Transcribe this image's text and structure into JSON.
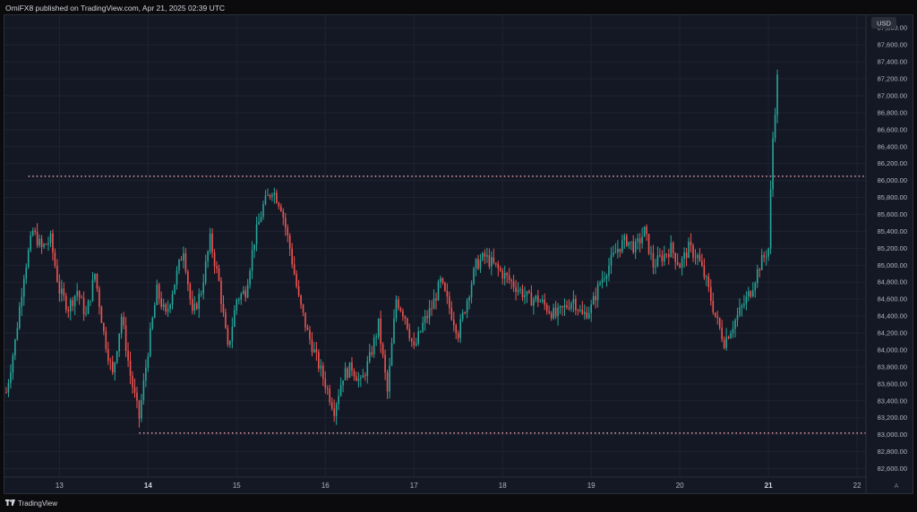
{
  "header": {
    "publisher_line": "OmiFX8 published on TradingView.com, Apr 21, 2025 02:39 UTC"
  },
  "footer": {
    "logo_icon": "tradingview-logo-icon",
    "brand": "TradingView"
  },
  "colors": {
    "up": "#26a69a",
    "down": "#ef5350",
    "level_line": "#f7a8b8",
    "grid": "#1f2331",
    "axis_text": "#b2b5be",
    "background": "#141824"
  },
  "chart_data": {
    "type": "candlestick",
    "currency": "USD",
    "x_tick_labels": [
      "13",
      "14",
      "15",
      "16",
      "17",
      "18",
      "19",
      "20",
      "21",
      "22"
    ],
    "x_tick_day_index": [
      13,
      14,
      15,
      16,
      17,
      18,
      19,
      20,
      21,
      22
    ],
    "y_ticks": [
      82600,
      82800,
      83000,
      83200,
      83400,
      83600,
      83800,
      84000,
      84200,
      84400,
      84600,
      84800,
      85000,
      85200,
      85400,
      85600,
      85800,
      86000,
      86200,
      86400,
      86600,
      86800,
      87000,
      87200,
      87400,
      87600,
      87800
    ],
    "y_tick_labels": [
      "82,600.00",
      "82,800.00",
      "83,000.00",
      "83,200.00",
      "83,400.00",
      "83,600.00",
      "83,800.00",
      "84,000.00",
      "84,200.00",
      "84,400.00",
      "84,600.00",
      "84,800.00",
      "85,000.00",
      "85,200.00",
      "85,400.00",
      "85,600.00",
      "85,800.00",
      "86,000.00",
      "86,200.00",
      "86,400.00",
      "86,600.00",
      "86,800.00",
      "87,000.00",
      "87,200.00",
      "87,400.00",
      "87,600.00",
      "87,800.00"
    ],
    "ylim": [
      82500,
      87950
    ],
    "xlim_day": [
      12.38,
      22.1
    ],
    "resistance_level": 86050,
    "support_level": 83020,
    "grid": true,
    "axis_corner_label": "A",
    "close_path": [
      [
        12.4,
        83500
      ],
      [
        12.5,
        84100
      ],
      [
        12.6,
        84900
      ],
      [
        12.7,
        85400
      ],
      [
        12.8,
        85200
      ],
      [
        12.9,
        85300
      ],
      [
        13.0,
        84700
      ],
      [
        13.1,
        84500
      ],
      [
        13.2,
        84700
      ],
      [
        13.3,
        84400
      ],
      [
        13.4,
        84900
      ],
      [
        13.5,
        84200
      ],
      [
        13.6,
        83700
      ],
      [
        13.7,
        84400
      ],
      [
        13.8,
        83700
      ],
      [
        13.9,
        83200
      ],
      [
        14.0,
        84000
      ],
      [
        14.1,
        84700
      ],
      [
        14.2,
        84400
      ],
      [
        14.3,
        84800
      ],
      [
        14.4,
        85200
      ],
      [
        14.5,
        84400
      ],
      [
        14.6,
        84700
      ],
      [
        14.7,
        85300
      ],
      [
        14.8,
        84800
      ],
      [
        14.9,
        84000
      ],
      [
        15.0,
        84600
      ],
      [
        15.1,
        84700
      ],
      [
        15.2,
        85300
      ],
      [
        15.3,
        85700
      ],
      [
        15.4,
        85900
      ],
      [
        15.5,
        85700
      ],
      [
        15.6,
        85200
      ],
      [
        15.7,
        84600
      ],
      [
        15.8,
        84200
      ],
      [
        15.9,
        83900
      ],
      [
        16.0,
        83600
      ],
      [
        16.1,
        83300
      ],
      [
        16.2,
        83700
      ],
      [
        16.3,
        83800
      ],
      [
        16.4,
        83600
      ],
      [
        16.5,
        83900
      ],
      [
        16.6,
        84300
      ],
      [
        16.7,
        83500
      ],
      [
        16.8,
        84600
      ],
      [
        16.9,
        84400
      ],
      [
        17.0,
        84000
      ],
      [
        17.1,
        84300
      ],
      [
        17.2,
        84500
      ],
      [
        17.3,
        84800
      ],
      [
        17.4,
        84500
      ],
      [
        17.5,
        84200
      ],
      [
        17.6,
        84600
      ],
      [
        17.7,
        85000
      ],
      [
        17.8,
        85100
      ],
      [
        17.9,
        85000
      ],
      [
        18.0,
        84900
      ],
      [
        18.1,
        84800
      ],
      [
        18.2,
        84700
      ],
      [
        18.3,
        84600
      ],
      [
        18.4,
        84600
      ],
      [
        18.5,
        84500
      ],
      [
        18.6,
        84400
      ],
      [
        18.7,
        84500
      ],
      [
        18.8,
        84600
      ],
      [
        18.9,
        84400
      ],
      [
        19.0,
        84500
      ],
      [
        19.1,
        84800
      ],
      [
        19.2,
        85000
      ],
      [
        19.3,
        85200
      ],
      [
        19.4,
        85300
      ],
      [
        19.5,
        85200
      ],
      [
        19.6,
        85400
      ],
      [
        19.7,
        85000
      ],
      [
        19.8,
        85100
      ],
      [
        19.9,
        85200
      ],
      [
        20.0,
        85000
      ],
      [
        20.1,
        85200
      ],
      [
        20.2,
        85100
      ],
      [
        20.3,
        84800
      ],
      [
        20.4,
        84400
      ],
      [
        20.5,
        84100
      ],
      [
        20.6,
        84300
      ],
      [
        20.7,
        84500
      ],
      [
        20.8,
        84700
      ],
      [
        20.9,
        85000
      ],
      [
        21.0,
        85200
      ],
      [
        21.05,
        86500
      ],
      [
        21.1,
        87200
      ]
    ]
  }
}
